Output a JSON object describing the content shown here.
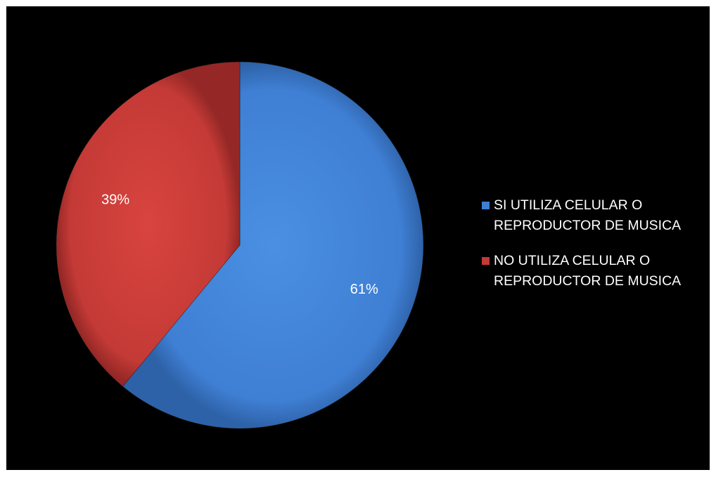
{
  "chart_data": {
    "type": "pie",
    "title": "",
    "slices": [
      {
        "label": "SI UTILIZA CELULAR O\nREPRODUCTOR DE MUSICA",
        "value": 61,
        "value_label": "61%",
        "color": "#3F7FD4"
      },
      {
        "label": "NO UTILIZA CELULAR O\nREPRODUCTOR DE MUSICA",
        "value": 39,
        "value_label": "39%",
        "color": "#C43A36"
      }
    ],
    "start": "12 o'clock",
    "direction": "clockwise",
    "legend_position": "right",
    "background": "#000000"
  }
}
